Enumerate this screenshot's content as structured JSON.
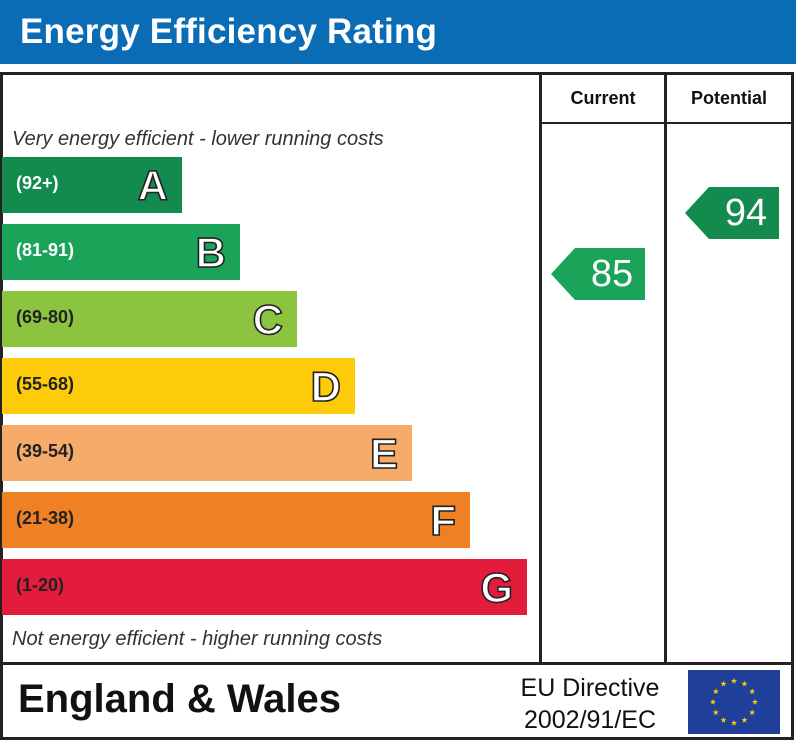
{
  "title": "Energy Efficiency Rating",
  "columns": {
    "current": "Current",
    "potential": "Potential"
  },
  "captions": {
    "top": "Very energy efficient - lower running costs",
    "bottom": "Not energy efficient - higher running costs"
  },
  "colors": {
    "header_bg": "#0a6cb5",
    "eu_flag_bg": "#1f3f9a",
    "eu_flag_stars": "#f5d000"
  },
  "chart_data": {
    "type": "bar",
    "categories": [
      "A",
      "B",
      "C",
      "D",
      "E",
      "F",
      "G"
    ],
    "bands": [
      {
        "letter": "A",
        "range": "(92+)",
        "color": "#138a4e",
        "text_color": "#ffffff"
      },
      {
        "letter": "B",
        "range": "(81-91)",
        "color": "#1ca35a",
        "text_color": "#ffffff"
      },
      {
        "letter": "C",
        "range": "(69-80)",
        "color": "#8cc43f",
        "text_color": "#222222"
      },
      {
        "letter": "D",
        "range": "(55-68)",
        "color": "#fecb0b",
        "text_color": "#222222"
      },
      {
        "letter": "E",
        "range": "(39-54)",
        "color": "#f6ab6a",
        "text_color": "#222222"
      },
      {
        "letter": "F",
        "range": "(21-38)",
        "color": "#ef8124",
        "text_color": "#222222"
      },
      {
        "letter": "G",
        "range": "(1-20)",
        "color": "#e41c3c",
        "text_color": "#222222"
      }
    ],
    "ratings": {
      "current": {
        "value": 85,
        "band": "B",
        "color": "#1ca35a"
      },
      "potential": {
        "value": 94,
        "band": "A",
        "color": "#138a4e"
      }
    }
  },
  "footer": {
    "country": "England & Wales",
    "directive_line1": "EU Directive",
    "directive_line2": "2002/91/EC"
  }
}
